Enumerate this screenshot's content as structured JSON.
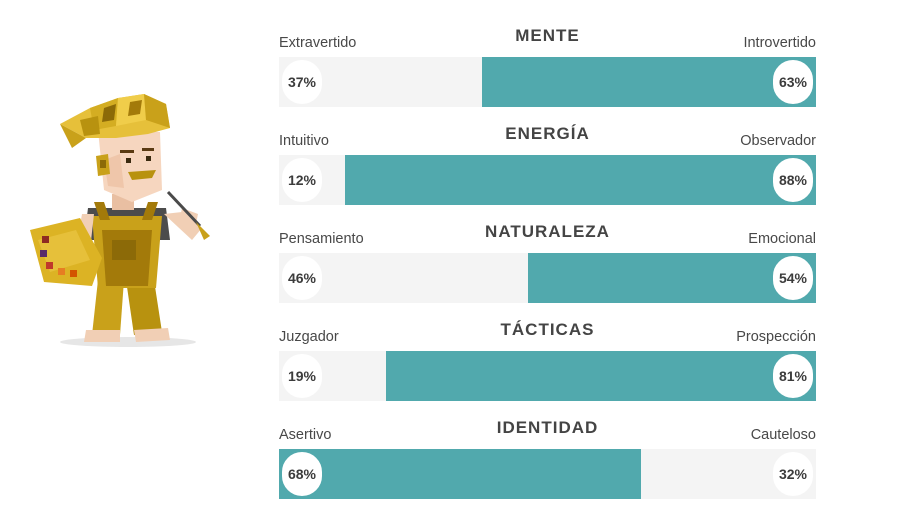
{
  "colors": {
    "accent": "#51a9ad",
    "track": "#f4f4f4",
    "text": "#3c3c3c"
  },
  "avatar": {
    "icon": "virtuoso-painter-avatar-icon"
  },
  "traits": [
    {
      "title": "MENTE",
      "left_label": "Extravertido",
      "right_label": "Introvertido",
      "left_pct": "37%",
      "right_pct": "63%",
      "dominant": "right",
      "dominant_value": 63
    },
    {
      "title": "ENERGÍA",
      "left_label": "Intuitivo",
      "right_label": "Observador",
      "left_pct": "12%",
      "right_pct": "88%",
      "dominant": "right",
      "dominant_value": 88
    },
    {
      "title": "NATURALEZA",
      "left_label": "Pensamiento",
      "right_label": "Emocional",
      "left_pct": "46%",
      "right_pct": "54%",
      "dominant": "right",
      "dominant_value": 54
    },
    {
      "title": "TÁCTICAS",
      "left_label": "Juzgador",
      "right_label": "Prospección",
      "left_pct": "19%",
      "right_pct": "81%",
      "dominant": "right",
      "dominant_value": 81
    },
    {
      "title": "IDENTIDAD",
      "left_label": "Asertivo",
      "right_label": "Cauteloso",
      "left_pct": "68%",
      "right_pct": "32%",
      "dominant": "left",
      "dominant_value": 68
    }
  ]
}
